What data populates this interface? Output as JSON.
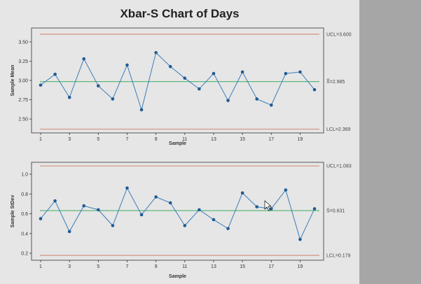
{
  "title": "Xbar-S Chart of Days",
  "colors": {
    "limit": "#d49a8a",
    "center": "#5fb87a",
    "series": "#3e7cb8",
    "point": "#1f5b95",
    "frame": "#333333",
    "background": "#e6e6e6",
    "side": "#a6a6a6"
  },
  "chart_data": [
    {
      "type": "line",
      "ylabel": "Sample Mean",
      "xlabel": "Sample",
      "x": [
        1,
        2,
        3,
        4,
        5,
        6,
        7,
        8,
        9,
        10,
        11,
        12,
        13,
        14,
        15,
        16,
        17,
        18,
        19,
        20
      ],
      "values": [
        2.94,
        3.08,
        2.78,
        3.28,
        2.93,
        2.76,
        3.2,
        2.62,
        3.36,
        3.18,
        3.03,
        2.89,
        3.09,
        2.74,
        3.11,
        2.76,
        2.68,
        3.09,
        3.11,
        2.88
      ],
      "ylim": [
        2.32,
        3.68
      ],
      "yticks": [
        2.5,
        2.75,
        3.0,
        3.25,
        3.5
      ],
      "ytick_labels": [
        "2.50",
        "2.75",
        "3.00",
        "3.25",
        "3.50"
      ],
      "xticks": [
        1,
        3,
        5,
        7,
        9,
        11,
        13,
        15,
        17,
        19
      ],
      "xtick_labels": [
        "1",
        "3",
        "5",
        "7",
        "9",
        "11",
        "13",
        "15",
        "17",
        "19"
      ],
      "ucl": 3.6,
      "center": 2.985,
      "lcl": 2.369,
      "ucl_label": "UCL=3.600",
      "center_label": "X̿=2.985",
      "lcl_label": "LCL=2.369"
    },
    {
      "type": "line",
      "ylabel": "Sample StDev",
      "xlabel": "Sample",
      "x": [
        1,
        2,
        3,
        4,
        5,
        6,
        7,
        8,
        9,
        10,
        11,
        12,
        13,
        14,
        15,
        16,
        17,
        18,
        19,
        20
      ],
      "values": [
        0.55,
        0.73,
        0.42,
        0.68,
        0.64,
        0.48,
        0.86,
        0.59,
        0.77,
        0.71,
        0.48,
        0.64,
        0.54,
        0.45,
        0.81,
        0.67,
        0.65,
        0.84,
        0.34,
        0.65
      ],
      "ylim": [
        0.13,
        1.12
      ],
      "yticks": [
        0.2,
        0.4,
        0.6,
        0.8,
        1.0
      ],
      "ytick_labels": [
        "0.2",
        "0.4",
        "0.6",
        "0.8",
        "1.0"
      ],
      "xticks": [
        1,
        3,
        5,
        7,
        9,
        11,
        13,
        15,
        17,
        19
      ],
      "xtick_labels": [
        "1",
        "3",
        "5",
        "7",
        "9",
        "11",
        "13",
        "15",
        "17",
        "19"
      ],
      "ucl": 1.083,
      "center": 0.631,
      "lcl": 0.179,
      "ucl_label": "UCL=1.083",
      "center_label": "S̄=0.631",
      "lcl_label": "LCL=0.179"
    }
  ]
}
